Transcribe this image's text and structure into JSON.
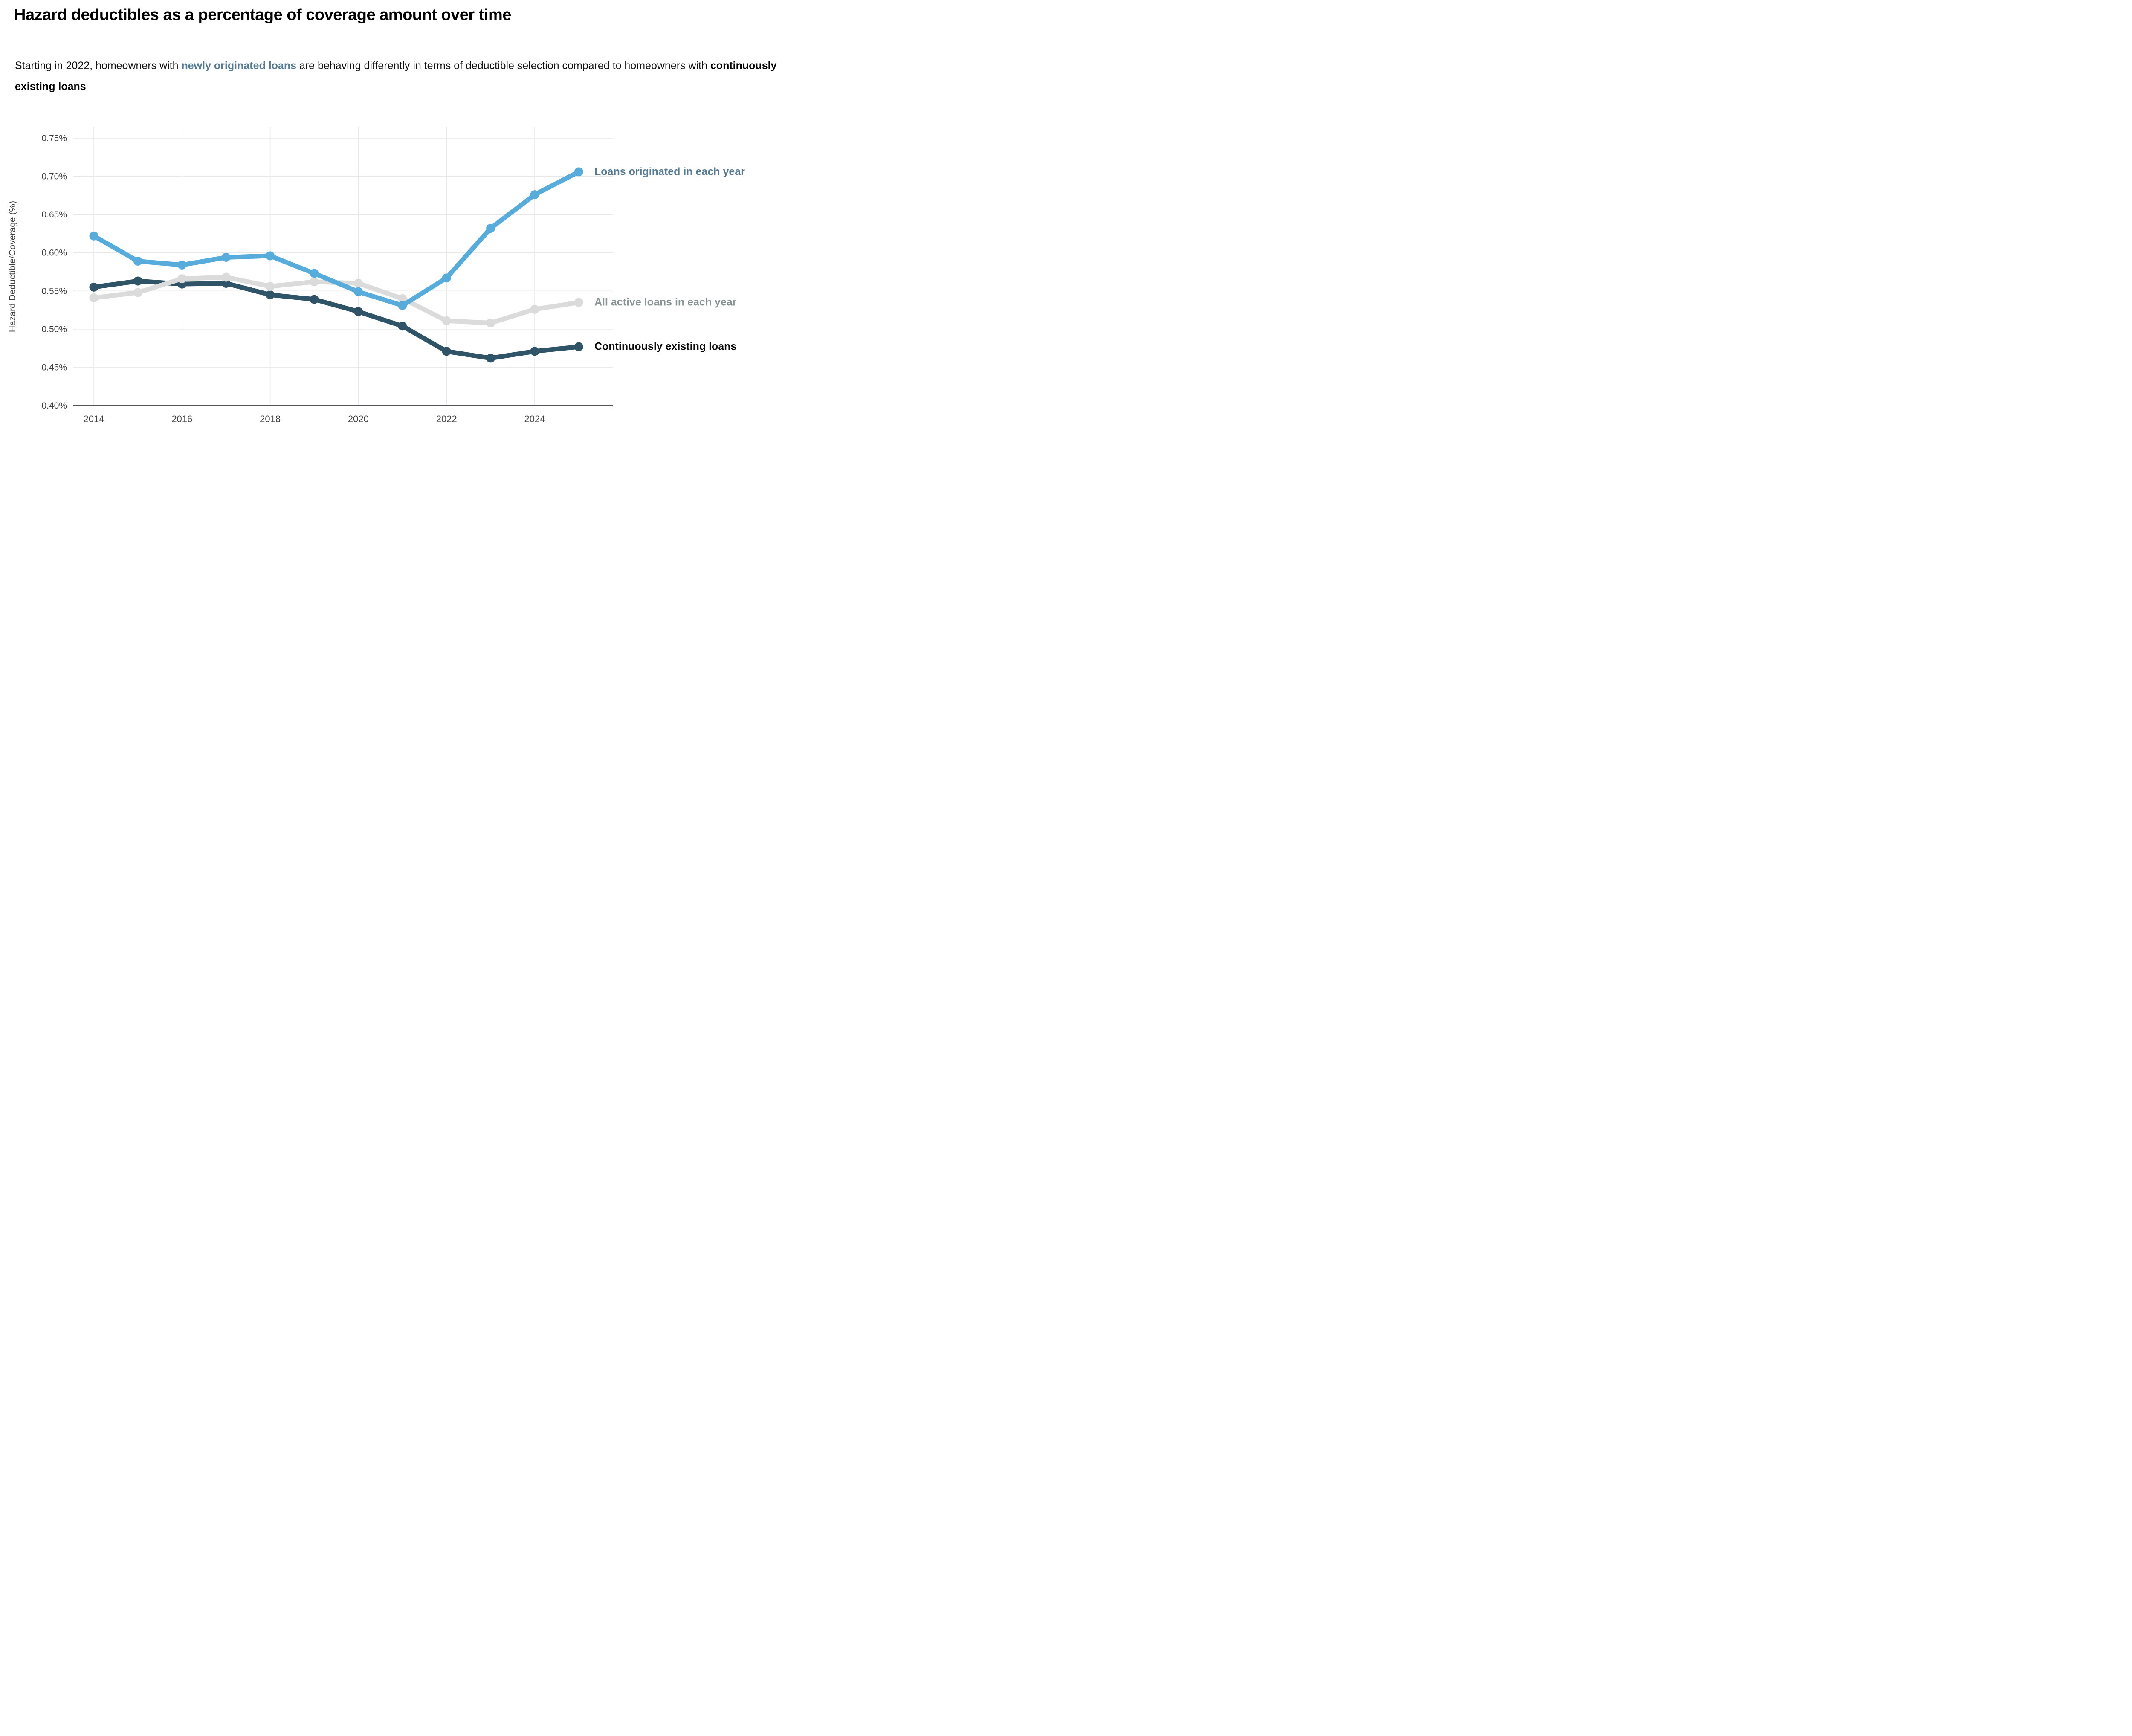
{
  "header": {
    "title": "Hazard deductibles as a percentage of coverage amount over time",
    "subtitle": {
      "part1": "Starting in 2022, homeowners with ",
      "highlight1": "newly originated loans",
      "part2": " are behaving differently in terms of deductible selection compared to homeowners with ",
      "highlight2": "continuously existing loans",
      "highlight1_color": "#567a92",
      "highlight2_color": "#000000"
    }
  },
  "chart_data": {
    "type": "line",
    "title": "Hazard deductibles as a percentage of coverage amount over time",
    "xlabel": "",
    "ylabel": "Hazard Deductible/Coverage (%)",
    "x": [
      2014,
      2015,
      2016,
      2017,
      2018,
      2019,
      2020,
      2021,
      2022,
      2023,
      2024,
      2025
    ],
    "series": [
      {
        "name": "Loans originated in each year",
        "color": "#57ACDC",
        "label_color": "#567A92",
        "values": [
          0.622,
          0.589,
          0.584,
          0.594,
          0.596,
          0.573,
          0.549,
          0.531,
          0.567,
          0.632,
          0.676,
          0.706
        ]
      },
      {
        "name": "All active loans in each year",
        "color": "#DBDBDB",
        "label_color": "#8A9394",
        "values": [
          0.541,
          0.548,
          0.566,
          0.568,
          0.556,
          0.562,
          0.56,
          0.54,
          0.511,
          0.508,
          0.526,
          0.535
        ]
      },
      {
        "name": "Continuously existing loans",
        "color": "#2F5468",
        "label_color": "#0B0B0B",
        "values": [
          0.555,
          0.563,
          0.559,
          0.56,
          0.545,
          0.539,
          0.523,
          0.504,
          0.471,
          0.462,
          0.471,
          0.477
        ]
      }
    ],
    "ylim": [
      0.4,
      0.75
    ],
    "ytick_step": 0.05,
    "ytick_labels": [
      "0.40%",
      "0.45%",
      "0.50%",
      "0.55%",
      "0.60%",
      "0.65%",
      "0.70%",
      "0.75%"
    ],
    "xticks": [
      2014,
      2016,
      2018,
      2020,
      2022,
      2024
    ],
    "grid": true,
    "legend_position": "right-annotations",
    "colors": {
      "grid": "#E8E8E8",
      "axis_line": "#53565C",
      "tick_text": "#3F3F3F"
    }
  }
}
